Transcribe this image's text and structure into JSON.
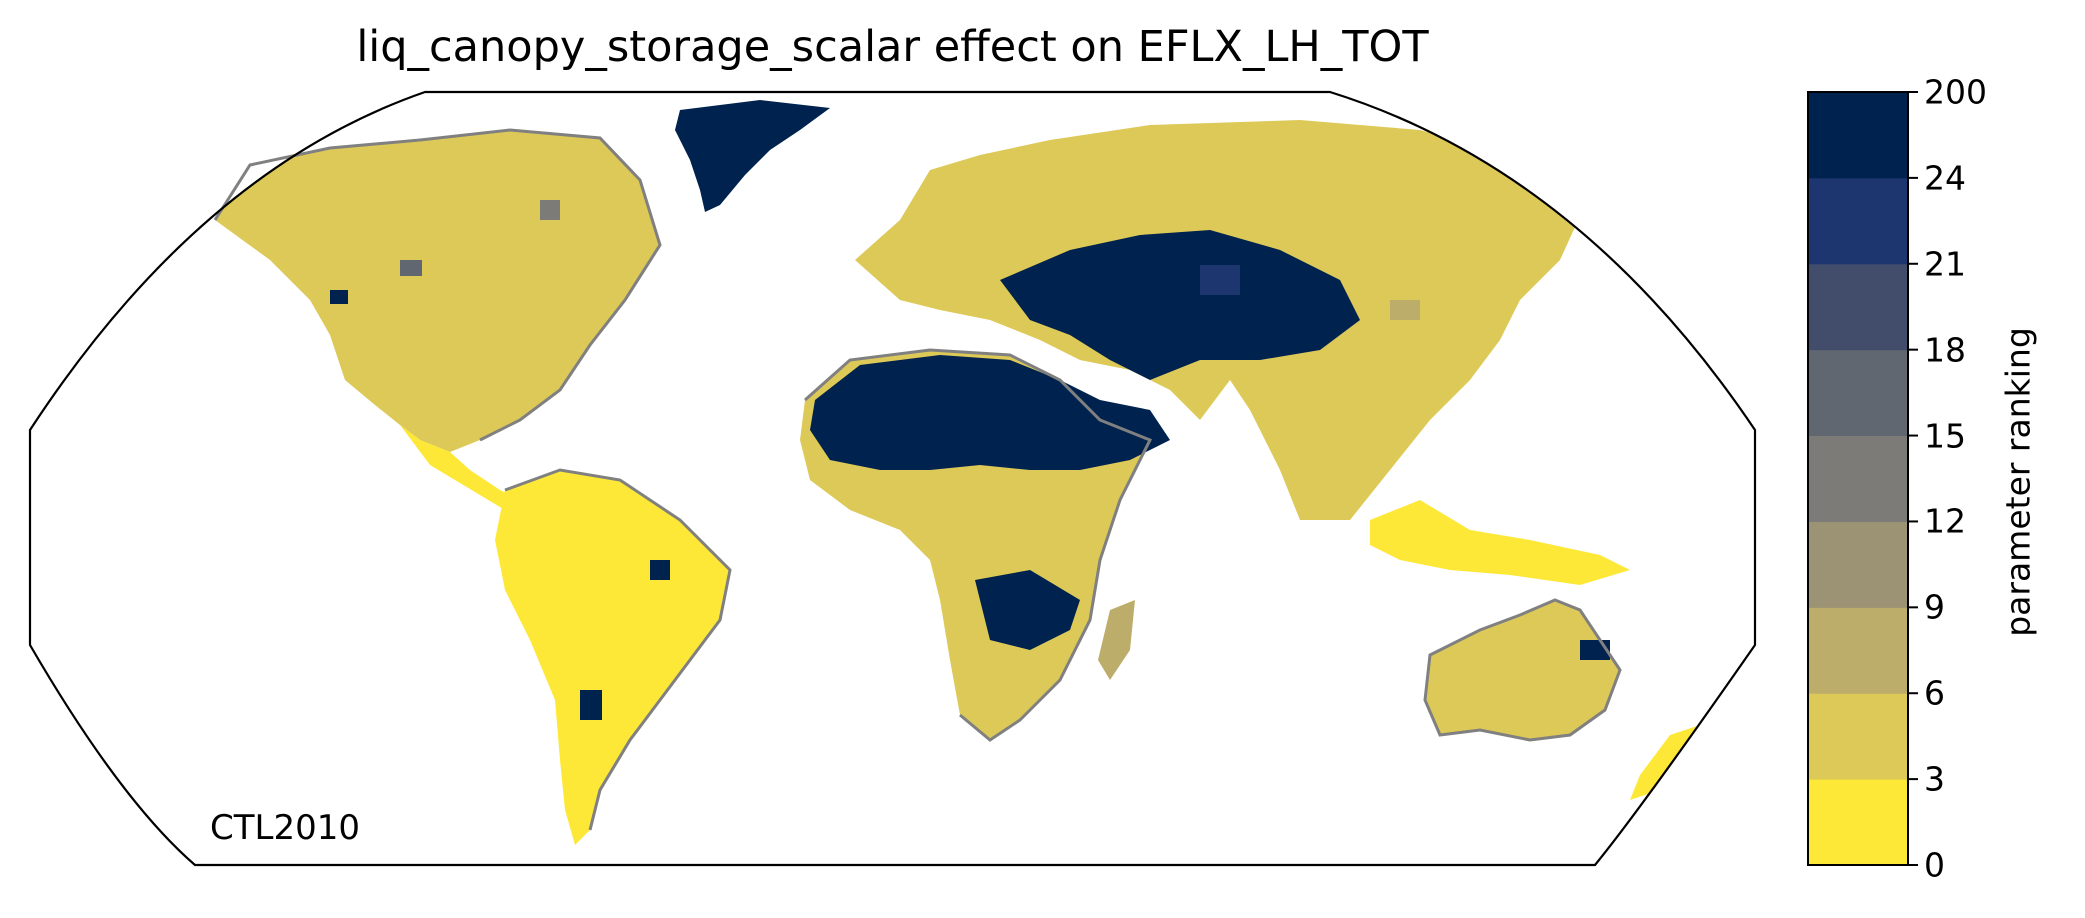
{
  "title": "liq_canopy_storage_scalar effect on EFLX_LH_TOT",
  "case_label": "CTL2010",
  "colorbar": {
    "label": "parameter ranking",
    "ticks": [
      "0",
      "3",
      "6",
      "9",
      "12",
      "15",
      "18",
      "21",
      "24",
      "200"
    ],
    "bins": [
      {
        "from": 0,
        "to": 3,
        "color": "#FDE838"
      },
      {
        "from": 3,
        "to": 6,
        "color": "#DDC957"
      },
      {
        "from": 6,
        "to": 9,
        "color": "#BCAD6A"
      },
      {
        "from": 9,
        "to": 12,
        "color": "#9C9274"
      },
      {
        "from": 12,
        "to": 15,
        "color": "#7C7B78"
      },
      {
        "from": 15,
        "to": 18,
        "color": "#616770"
      },
      {
        "from": 18,
        "to": 21,
        "color": "#414D6B"
      },
      {
        "from": 21,
        "to": 24,
        "color": "#1E3670"
      },
      {
        "from": 24,
        "to": 200,
        "color": "#00224E"
      }
    ]
  },
  "map": {
    "projection": "Robinson",
    "coastline_color": "#808080"
  }
}
